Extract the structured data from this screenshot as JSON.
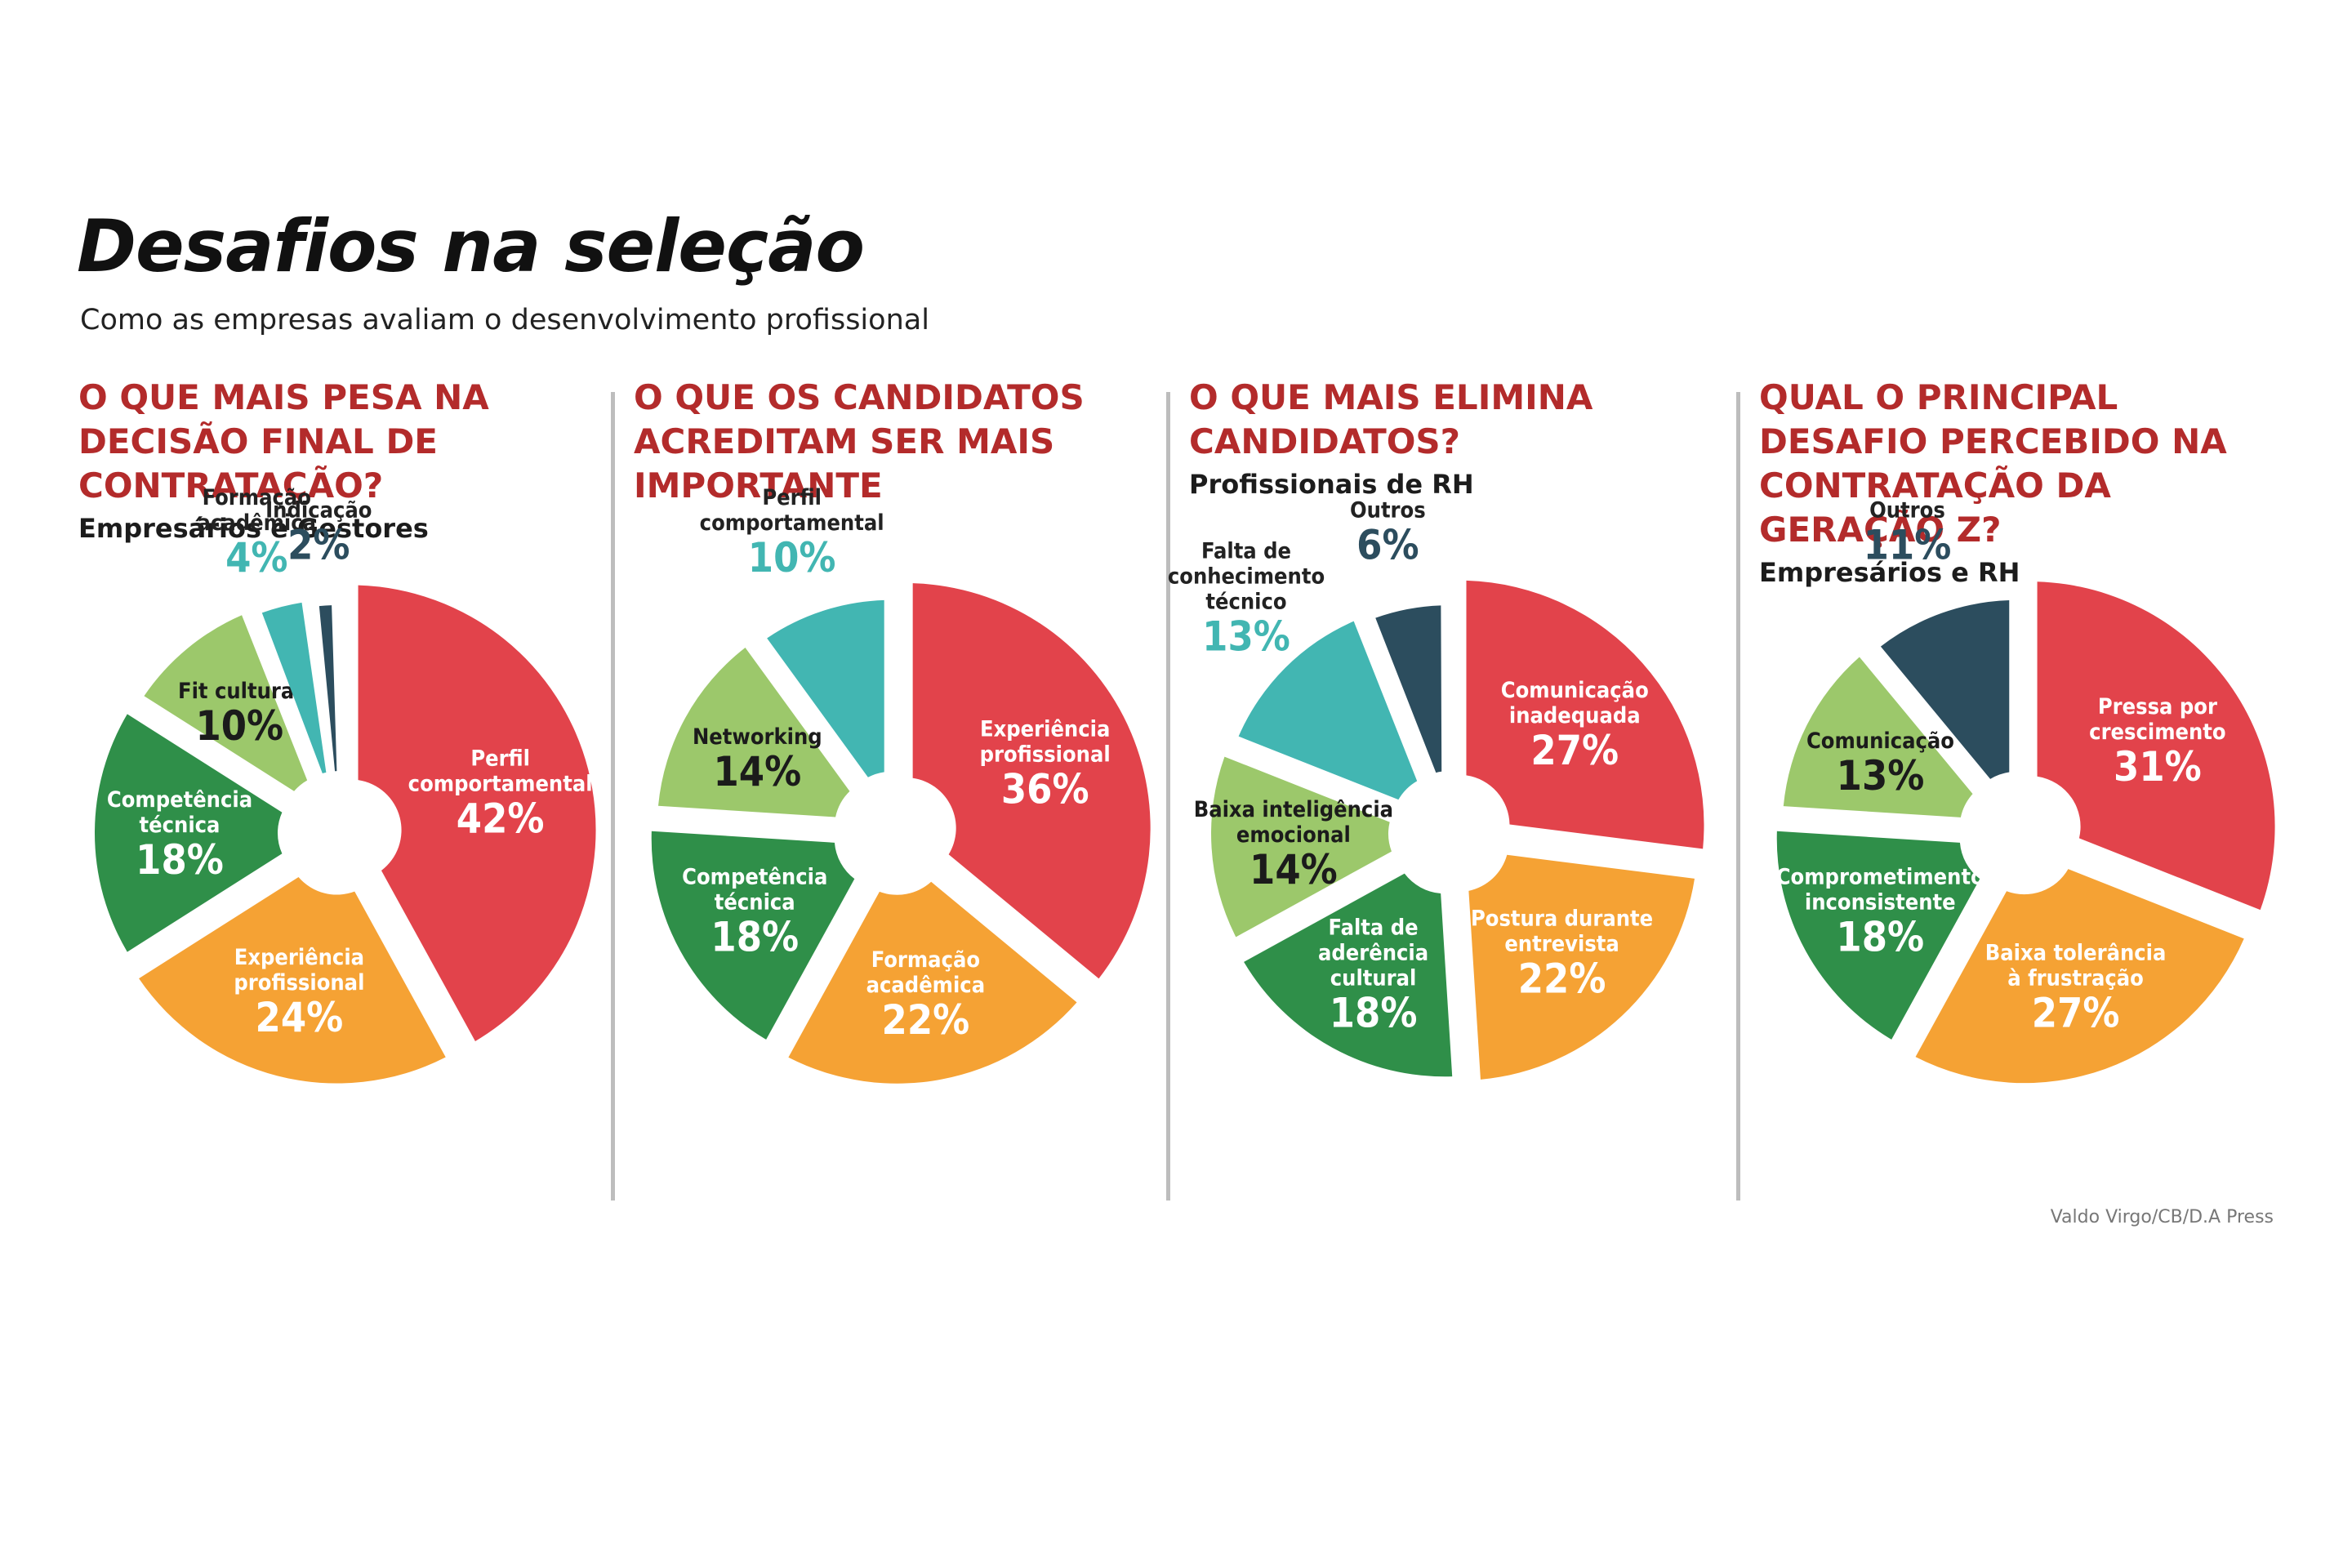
{
  "header": {
    "title": "Desafios na seleção",
    "subtitle": "Como as empresas avaliam o desenvolvimento profissional"
  },
  "credit": "Valdo Virgo/CB/D.A Press",
  "colors": {
    "red": "#e2434b",
    "orange": "#f5a234",
    "dark_green": "#2f8f49",
    "light_green": "#9cc86b",
    "teal": "#42b6b2",
    "navy": "#2c4d5e",
    "question": "#b32b2b"
  },
  "chart_data": [
    {
      "type": "pie",
      "title": "O QUE MAIS PESA NA DECISÃO FINAL DE CONTRATAÇÃO?",
      "subtitle": "Empresários e Gestores",
      "slices": [
        {
          "label": [
            "Perfil",
            "comportamental"
          ],
          "value": 42,
          "value_label": "42%",
          "color": "red"
        },
        {
          "label": [
            "Experiência",
            "profissional"
          ],
          "value": 24,
          "value_label": "24%",
          "color": "orange"
        },
        {
          "label": [
            "Competência",
            "técnica"
          ],
          "value": 18,
          "value_label": "18%",
          "color": "dark_green"
        },
        {
          "label": [
            "Fit cultural"
          ],
          "value": 10,
          "value_label": "10%",
          "color": "light_green"
        },
        {
          "label": [
            "Formação",
            "acadêmica"
          ],
          "value": 4,
          "value_label": "4%",
          "color": "teal",
          "outside": true
        },
        {
          "label": [
            "Indicação"
          ],
          "value": 2,
          "value_label": "2%",
          "color": "navy",
          "outside": true
        }
      ]
    },
    {
      "type": "pie",
      "title": "O QUE OS CANDIDATOS ACREDITAM SER MAIS IMPORTANTE",
      "subtitle": "",
      "slices": [
        {
          "label": [
            "Experiência",
            "profissional"
          ],
          "value": 36,
          "value_label": "36%",
          "color": "red"
        },
        {
          "label": [
            "Formação",
            "acadêmica"
          ],
          "value": 22,
          "value_label": "22%",
          "color": "orange"
        },
        {
          "label": [
            "Competência",
            "técnica"
          ],
          "value": 18,
          "value_label": "18%",
          "color": "dark_green"
        },
        {
          "label": [
            "Networking"
          ],
          "value": 14,
          "value_label": "14%",
          "color": "light_green"
        },
        {
          "label": [
            "Perfil",
            "comportamental"
          ],
          "value": 10,
          "value_label": "10%",
          "color": "teal",
          "outside": true
        }
      ]
    },
    {
      "type": "pie",
      "title": "O QUE MAIS ELIMINA CANDIDATOS?",
      "subtitle": "Profissionais de RH",
      "slices": [
        {
          "label": [
            "Comunicação",
            "inadequada"
          ],
          "value": 27,
          "value_label": "27%",
          "color": "red"
        },
        {
          "label": [
            "Postura durante",
            "entrevista"
          ],
          "value": 22,
          "value_label": "22%",
          "color": "orange"
        },
        {
          "label": [
            "Falta de",
            "aderência",
            "cultural"
          ],
          "value": 18,
          "value_label": "18%",
          "color": "dark_green"
        },
        {
          "label": [
            "Baixa inteligência",
            "emocional"
          ],
          "value": 14,
          "value_label": "14%",
          "color": "light_green"
        },
        {
          "label": [
            "Falta de",
            "conhecimento",
            "técnico"
          ],
          "value": 13,
          "value_label": "13%",
          "color": "teal",
          "outside": true
        },
        {
          "label": [
            "Outros"
          ],
          "value": 6,
          "value_label": "6%",
          "color": "navy",
          "outside": true
        }
      ]
    },
    {
      "type": "pie",
      "title": "QUAL O PRINCIPAL DESAFIO PERCEBIDO NA CONTRATAÇÃO DA GERAÇÃO Z?",
      "subtitle": "Empresários e RH",
      "slices": [
        {
          "label": [
            "Pressa por",
            "crescimento"
          ],
          "value": 31,
          "value_label": "31%",
          "color": "red"
        },
        {
          "label": [
            "Baixa tolerância",
            "à frustração"
          ],
          "value": 27,
          "value_label": "27%",
          "color": "orange"
        },
        {
          "label": [
            "Comprometimento",
            "inconsistente"
          ],
          "value": 18,
          "value_label": "18%",
          "color": "dark_green"
        },
        {
          "label": [
            "Comunicação"
          ],
          "value": 13,
          "value_label": "13%",
          "color": "light_green"
        },
        {
          "label": [
            "Outros"
          ],
          "value": 11,
          "value_label": "11%",
          "color": "navy",
          "outside": true
        }
      ]
    }
  ]
}
